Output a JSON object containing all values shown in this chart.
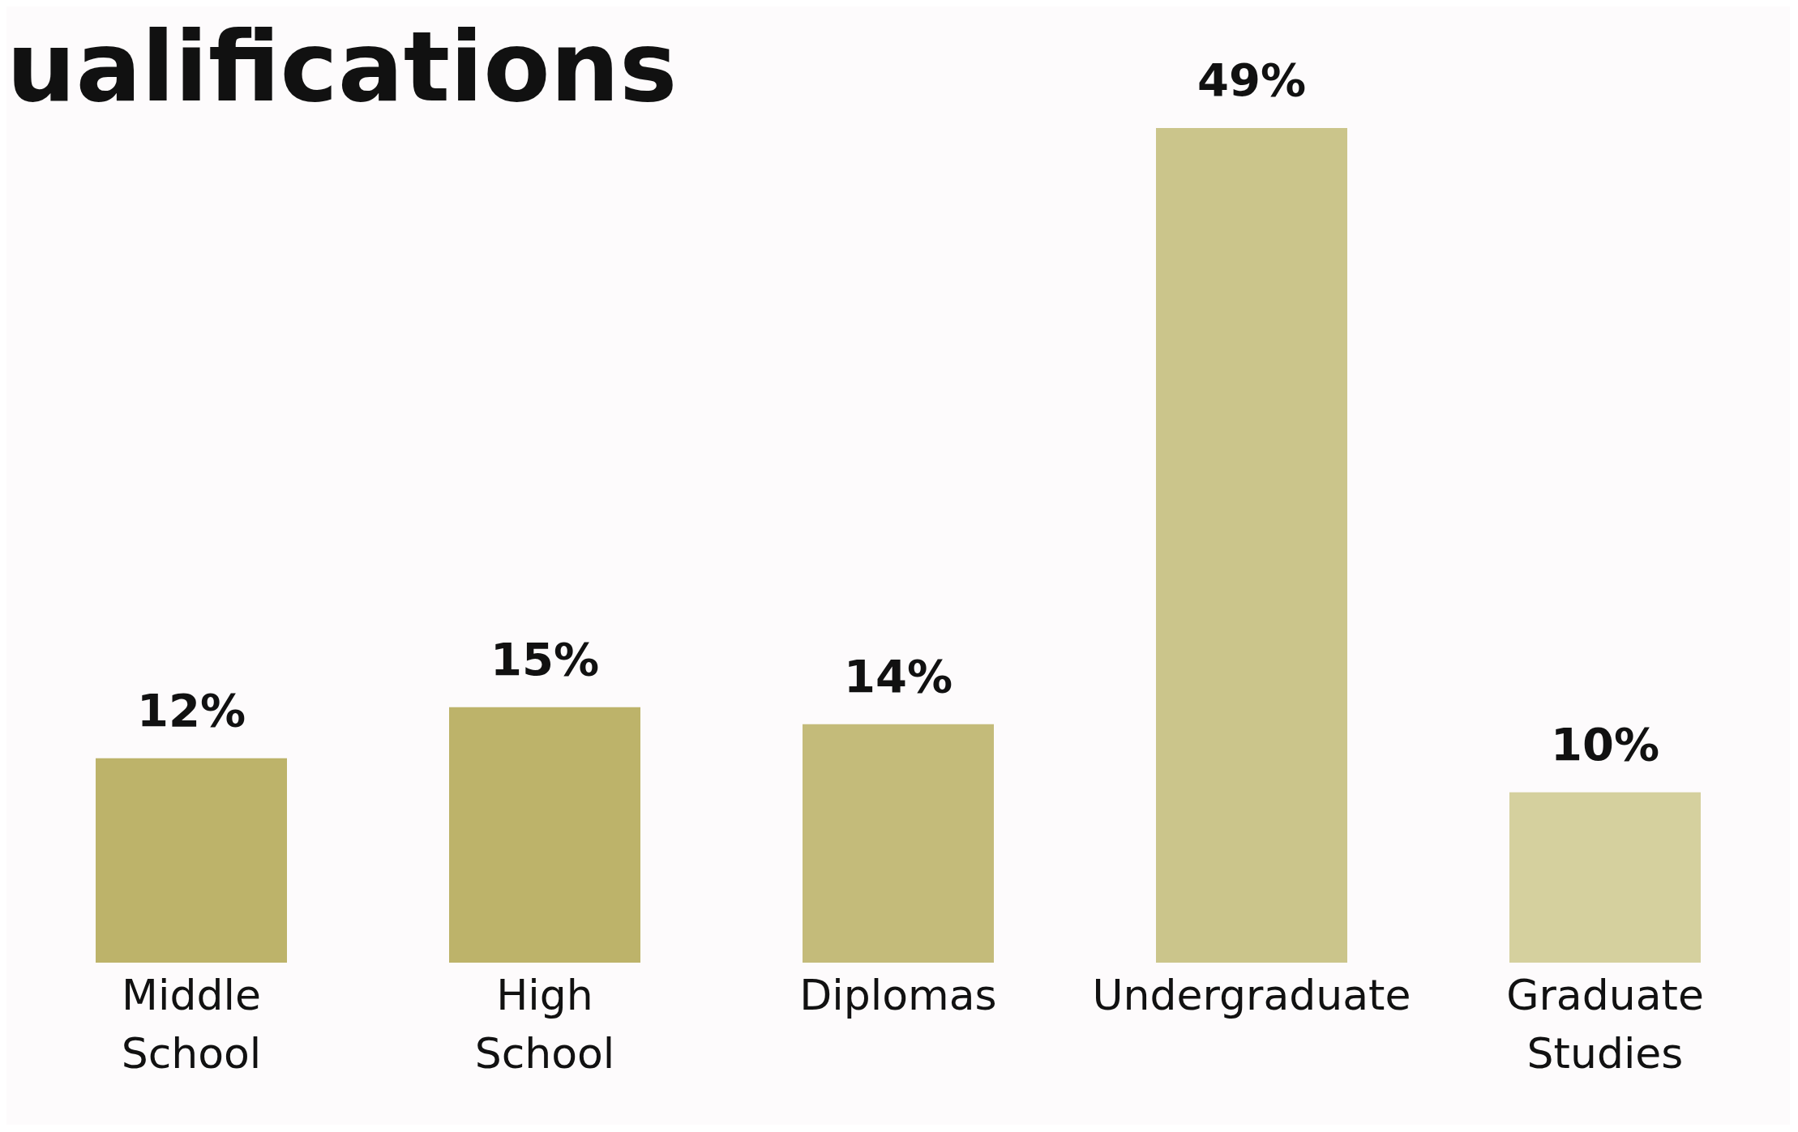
{
  "chart_data": {
    "type": "bar",
    "title": "ualifications",
    "categories": [
      "Middle School",
      "High School",
      "Diplomas",
      "Undergraduate",
      "Graduate Studies"
    ],
    "values": [
      12,
      15,
      14,
      49,
      10
    ],
    "value_labels": [
      "12%",
      "15%",
      "14%",
      "49%",
      "10%"
    ],
    "colors": [
      "#bdb36a",
      "#bdb36a",
      "#c4bb7a",
      "#cbc58b",
      "#d5d09e"
    ],
    "grid": false,
    "legend": false
  }
}
